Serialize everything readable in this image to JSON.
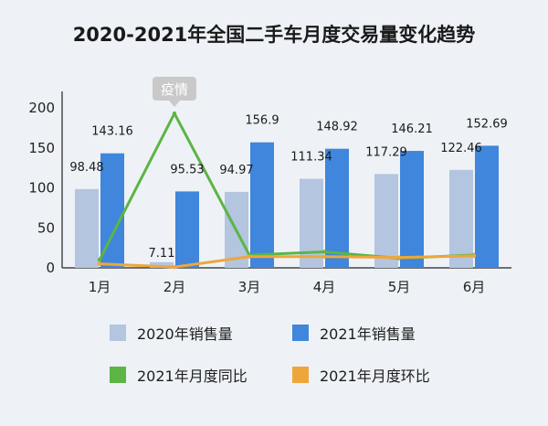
{
  "chart_data": {
    "type": "bar",
    "title": "2020-2021年全国二手车月度交易量变化趋势",
    "categories": [
      "1月",
      "2月",
      "3月",
      "4月",
      "5月",
      "6月"
    ],
    "ylim": [
      0,
      200
    ],
    "yticks": [
      0,
      50,
      100,
      150,
      200
    ],
    "grid": false,
    "legend_position": "bottom",
    "series": [
      {
        "name": "2020年销售量",
        "kind": "bar",
        "color": "#b3c5df",
        "values": [
          98.48,
          7.11,
          94.97,
          111.34,
          117.29,
          122.46
        ],
        "labels": [
          "98.48",
          "7.11",
          "94.97",
          "111.34",
          "117.29",
          "122.46"
        ]
      },
      {
        "name": "2021年销售量",
        "kind": "bar",
        "color": "#3f86dc",
        "values": [
          143.16,
          95.53,
          156.9,
          148.92,
          146.21,
          152.69
        ],
        "labels": [
          "143.16",
          "95.53",
          "156.9",
          "148.92",
          "146.21",
          "152.69"
        ]
      },
      {
        "name": "2021年月度同比",
        "kind": "line",
        "color": "#5cb545",
        "values": [
          10,
          193,
          16,
          20,
          12,
          16
        ]
      },
      {
        "name": "2021年月度环比",
        "kind": "line",
        "color": "#eea63c",
        "values": [
          5,
          1,
          14,
          14,
          13,
          15
        ]
      }
    ],
    "annotations": [
      {
        "text": "疫情",
        "category": "2月",
        "value": 193
      }
    ]
  }
}
